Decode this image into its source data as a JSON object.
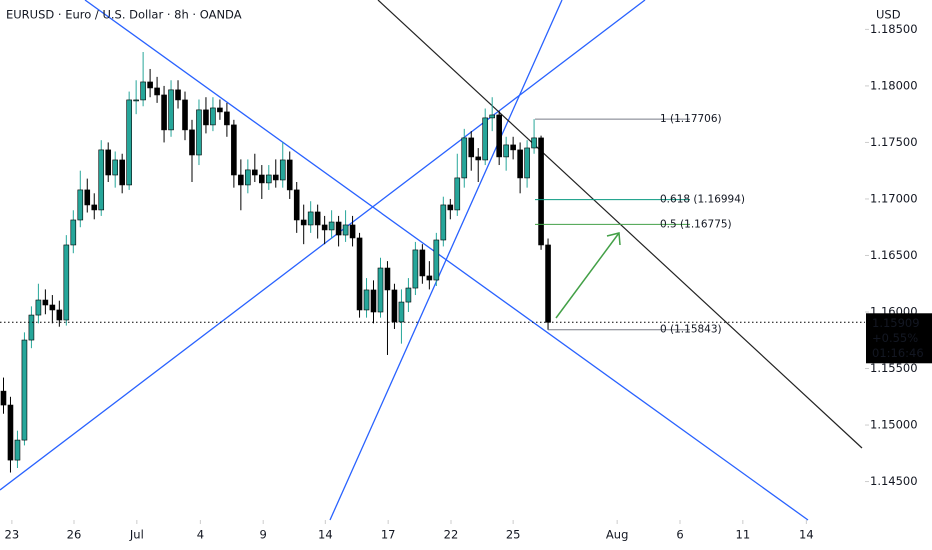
{
  "chart_data": {
    "type": "candlestick",
    "title": "EURUSD · Euro / U.S. Dollar · 8h · OANDA",
    "currency": "USD",
    "up_color": "#26a69a",
    "down_color": "#000000",
    "ylim": [
      1.1416,
      1.1876
    ],
    "yticks": [
      {
        "value": 1.145,
        "label": "1.14500"
      },
      {
        "value": 1.15,
        "label": "1.15000"
      },
      {
        "value": 1.155,
        "label": "1.15500"
      },
      {
        "value": 1.16,
        "label": "1.16000"
      },
      {
        "value": 1.165,
        "label": "1.16500"
      },
      {
        "value": 1.17,
        "label": "1.17000"
      },
      {
        "value": 1.175,
        "label": "1.17500"
      },
      {
        "value": 1.18,
        "label": "1.18000"
      },
      {
        "value": 1.185,
        "label": "1.18500"
      }
    ],
    "xlim": [
      -0.5,
      123.4
    ],
    "xticks": [
      {
        "value": 1.2,
        "label": "23"
      },
      {
        "value": 10.1,
        "label": "26"
      },
      {
        "value": 19.1,
        "label": "Jul"
      },
      {
        "value": 28.2,
        "label": "4"
      },
      {
        "value": 37.2,
        "label": "9"
      },
      {
        "value": 46.1,
        "label": "14"
      },
      {
        "value": 55.1,
        "label": "17"
      },
      {
        "value": 64.1,
        "label": "22"
      },
      {
        "value": 73.0,
        "label": "25"
      },
      {
        "value": 87.9,
        "label": "Aug"
      },
      {
        "value": 96.9,
        "label": "6"
      },
      {
        "value": 105.9,
        "label": "11"
      },
      {
        "value": 115.0,
        "label": "14"
      }
    ],
    "ohlc": [
      [
        1.153,
        1.1542,
        1.151,
        1.15177
      ],
      [
        1.15177,
        1.1525,
        1.1458,
        1.1469
      ],
      [
        1.1469,
        1.1495,
        1.1462,
        1.14867
      ],
      [
        1.14867,
        1.1582,
        1.1482,
        1.15752
      ],
      [
        1.15752,
        1.1605,
        1.1568,
        1.15973
      ],
      [
        1.15973,
        1.1625,
        1.159,
        1.16106
      ],
      [
        1.16106,
        1.162,
        1.1598,
        1.16062
      ],
      [
        1.16062,
        1.1615,
        1.159,
        1.16018
      ],
      [
        1.16018,
        1.161,
        1.1587,
        1.15929
      ],
      [
        1.15929,
        1.1668,
        1.1588,
        1.16593
      ],
      [
        1.16593,
        1.169,
        1.1652,
        1.16814
      ],
      [
        1.16814,
        1.1725,
        1.1675,
        1.1708
      ],
      [
        1.1708,
        1.1718,
        1.1688,
        1.16947
      ],
      [
        1.16947,
        1.1705,
        1.1682,
        1.16903
      ],
      [
        1.16903,
        1.1752,
        1.1685,
        1.17434
      ],
      [
        1.17434,
        1.175,
        1.1715,
        1.17212
      ],
      [
        1.17212,
        1.1742,
        1.171,
        1.17345
      ],
      [
        1.17345,
        1.174,
        1.1705,
        1.17124
      ],
      [
        1.17124,
        1.1795,
        1.1708,
        1.17876
      ],
      [
        1.17876,
        1.1805,
        1.1775,
        1.17876
      ],
      [
        1.17876,
        1.183,
        1.1782,
        1.18035
      ],
      [
        1.18035,
        1.1815,
        1.179,
        1.17982
      ],
      [
        1.17982,
        1.1808,
        1.1785,
        1.1792
      ],
      [
        1.1792,
        1.18,
        1.175,
        1.17611
      ],
      [
        1.17611,
        1.1805,
        1.1755,
        1.17965
      ],
      [
        1.17965,
        1.1805,
        1.178,
        1.17876
      ],
      [
        1.17876,
        1.1795,
        1.1752,
        1.17611
      ],
      [
        1.17611,
        1.177,
        1.1715,
        1.17389
      ],
      [
        1.17389,
        1.1788,
        1.173,
        1.17788
      ],
      [
        1.17788,
        1.179,
        1.1758,
        1.17655
      ],
      [
        1.17655,
        1.179,
        1.176,
        1.17805
      ],
      [
        1.17805,
        1.1788,
        1.177,
        1.1777
      ],
      [
        1.1777,
        1.1785,
        1.1755,
        1.17655
      ],
      [
        1.17655,
        1.177,
        1.171,
        1.17212
      ],
      [
        1.17212,
        1.1735,
        1.169,
        1.17124
      ],
      [
        1.17124,
        1.1735,
        1.1705,
        1.17257
      ],
      [
        1.17257,
        1.174,
        1.1715,
        1.17212
      ],
      [
        1.17212,
        1.173,
        1.17,
        1.17142
      ],
      [
        1.17142,
        1.173,
        1.1708,
        1.17212
      ],
      [
        1.17212,
        1.1735,
        1.171,
        1.17168
      ],
      [
        1.17168,
        1.175,
        1.171,
        1.17345
      ],
      [
        1.17345,
        1.1742,
        1.17,
        1.1708
      ],
      [
        1.1708,
        1.1715,
        1.167,
        1.16814
      ],
      [
        1.16814,
        1.1695,
        1.166,
        1.1677
      ],
      [
        1.1677,
        1.1698,
        1.167,
        1.16885
      ],
      [
        1.16885,
        1.1695,
        1.1665,
        1.1677
      ],
      [
        1.1677,
        1.1685,
        1.166,
        1.16726
      ],
      [
        1.16726,
        1.169,
        1.1665,
        1.16796
      ],
      [
        1.16796,
        1.1685,
        1.1658,
        1.16681
      ],
      [
        1.16681,
        1.169,
        1.1662,
        1.1677
      ],
      [
        1.1677,
        1.1685,
        1.1658,
        1.16655
      ],
      [
        1.16655,
        1.167,
        1.1595,
        1.16018
      ],
      [
        1.16018,
        1.163,
        1.1595,
        1.16195
      ],
      [
        1.16195,
        1.1628,
        1.159,
        1.16
      ],
      [
        1.16,
        1.1648,
        1.1595,
        1.16389
      ],
      [
        1.16389,
        1.1645,
        1.1562,
        1.16195
      ],
      [
        1.16195,
        1.1625,
        1.1585,
        1.15912
      ],
      [
        1.15912,
        1.162,
        1.1572,
        1.16088
      ],
      [
        1.16088,
        1.163,
        1.16,
        1.16212
      ],
      [
        1.16212,
        1.1662,
        1.1615,
        1.16549
      ],
      [
        1.16549,
        1.166,
        1.1625,
        1.16319
      ],
      [
        1.16319,
        1.1645,
        1.162,
        1.16283
      ],
      [
        1.16283,
        1.167,
        1.1623,
        1.16637
      ],
      [
        1.16637,
        1.1702,
        1.1658,
        1.16947
      ],
      [
        1.16947,
        1.17,
        1.1682,
        1.16903
      ],
      [
        1.16903,
        1.174,
        1.1685,
        1.17186
      ],
      [
        1.17186,
        1.1762,
        1.171,
        1.1754
      ],
      [
        1.1754,
        1.176,
        1.1725,
        1.17372
      ],
      [
        1.17372,
        1.1745,
        1.1715,
        1.17345
      ],
      [
        1.17345,
        1.178,
        1.173,
        1.17717
      ],
      [
        1.17717,
        1.179,
        1.176,
        1.17743
      ],
      [
        1.17743,
        1.1778,
        1.173,
        1.17372
      ],
      [
        1.17372,
        1.1755,
        1.1725,
        1.17478
      ],
      [
        1.17478,
        1.1755,
        1.1735,
        1.17434
      ],
      [
        1.17434,
        1.175,
        1.1705,
        1.17186
      ],
      [
        1.17186,
        1.1752,
        1.171,
        1.17451
      ],
      [
        1.17451,
        1.17706,
        1.174,
        1.1754
      ],
      [
        1.1754,
        1.1756,
        1.1655,
        1.16593
      ],
      [
        1.16593,
        1.1665,
        1.15843,
        1.15909
      ]
    ],
    "fib_levels": [
      {
        "value": 1.17706,
        "label": "1 (1.17706)",
        "color": "#787b86"
      },
      {
        "value": 1.16994,
        "label": "0.618 (1.16994)",
        "color": "#089981"
      },
      {
        "value": 1.16775,
        "label": "0.5 (1.16775)",
        "color": "#43a047"
      },
      {
        "value": 1.15843,
        "label": "0 (1.15843)",
        "color": "#787b86"
      }
    ],
    "last_price_change": "+0.55%",
    "countdown": "01:16:46"
  }
}
